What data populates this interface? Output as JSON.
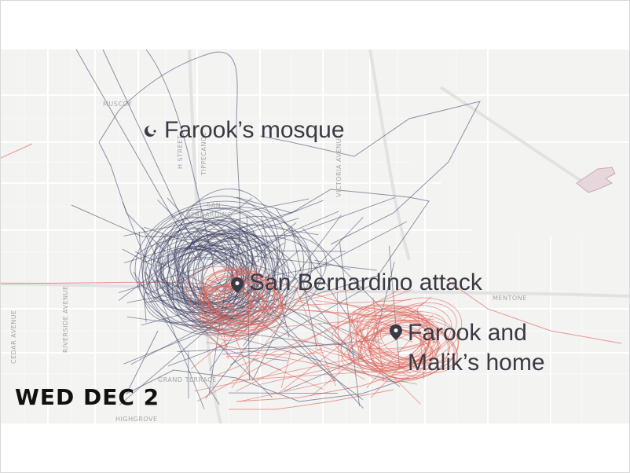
{
  "date_banner": "WED DEC 2",
  "labels": {
    "mosque": "Farook’s mosque",
    "attack": "San Bernardino attack",
    "home_line1": "Farook and",
    "home_line2": "Malik’s home"
  },
  "icons": {
    "mosque": "crescent-icon",
    "attack": "map-pin-icon",
    "home": "map-pin-icon"
  },
  "place_names": {
    "muscoy": "MUSCOY",
    "san": "SAN",
    "bernardino": "BERNARDINO",
    "mentone": "MENTONE",
    "grand_terrace": "GRAND TERRACE",
    "highgrove": "HIGHGROVE",
    "h_street": "H STREET",
    "tippecanoe": "TIPPECANOE",
    "victoria_ave": "VICTORIA AVENUE",
    "riverside_ave": "RIVERSIDE AVENUE",
    "cedar_ave": "CEDAR AVENUE"
  },
  "colors": {
    "map_background": "#f3f3f2",
    "streets": "#ffffff",
    "flight_path_dark": "#4a4f6e",
    "flight_path_red": "#e0665a",
    "label_text": "#3a3a44",
    "date_text": "#111111"
  }
}
